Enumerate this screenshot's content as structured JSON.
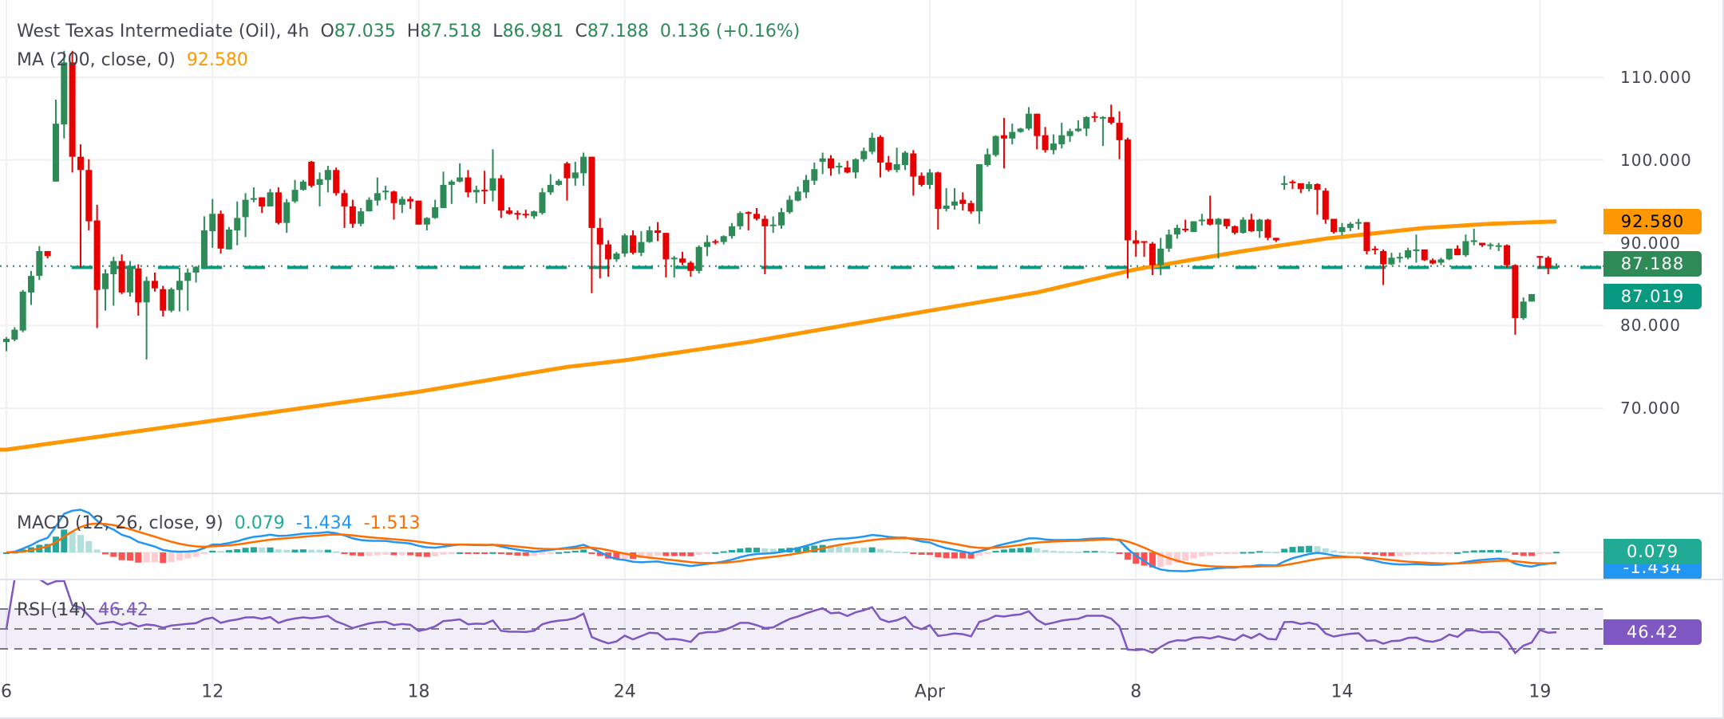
{
  "header": {
    "title": "West Texas Intermediate (Oil), 4h",
    "o_label": "O",
    "o": "87.035",
    "h_label": "H",
    "h": "87.518",
    "l_label": "L",
    "l": "86.981",
    "c_label": "C",
    "c": "87.188",
    "change": "0.136 (+0.16%)"
  },
  "ma": {
    "label": "MA (200, close, 0)",
    "value": "92.580"
  },
  "macd": {
    "label": "MACD (12, 26, close, 9)",
    "hist": "0.079",
    "macd": "-1.434",
    "signal": "-1.513"
  },
  "rsi": {
    "label": "RSI (14)",
    "value": "46.42",
    "levels": [
      70,
      50,
      30
    ]
  },
  "price_axis": {
    "ticks": [
      {
        "label": "110.000",
        "value": 110
      },
      {
        "label": "100.000",
        "value": 100
      },
      {
        "label": "90.000",
        "value": 90
      },
      {
        "label": "80.000",
        "value": 80
      },
      {
        "label": "70.000",
        "value": 70
      }
    ],
    "badges": {
      "ma": {
        "label": "92.580",
        "value": 92.58
      },
      "last": {
        "label": "87.188",
        "value": 87.188
      },
      "line": {
        "label": "87.019",
        "value": 87.019
      }
    }
  },
  "time_axis": {
    "ticks": [
      {
        "label": "6",
        "bar": 0
      },
      {
        "label": "12",
        "bar": 25
      },
      {
        "label": "18",
        "bar": 50
      },
      {
        "label": "24",
        "bar": 75
      },
      {
        "label": "Apr",
        "bar": 112
      },
      {
        "label": "8",
        "bar": 137
      },
      {
        "label": "14",
        "bar": 162
      },
      {
        "label": "19",
        "bar": 186
      }
    ]
  },
  "colors": {
    "up": "#2e8b57",
    "down": "#e60000",
    "ma": "#ff9800",
    "last": "#2e8b57",
    "line": "#089981",
    "macd": "#2196f3",
    "signal": "#ff6d00",
    "hist_up_strong": "#26a69a",
    "hist_up_weak": "#b2dfdb",
    "hist_down_strong": "#ff5252",
    "hist_down_weak": "#ffcdd2",
    "rsi": "#7e57c2",
    "macd_badge": "#22ab94"
  },
  "chart_data": {
    "type": "candlestick",
    "ylim": [
      62,
      116
    ],
    "candles": [
      [
        78.0,
        78.6,
        76.9,
        78.4
      ],
      [
        78.3,
        79.8,
        78.1,
        79.5
      ],
      [
        79.4,
        84.3,
        79.2,
        84.1
      ],
      [
        84,
        86.6,
        82.5,
        86
      ],
      [
        86,
        89.6,
        85.5,
        89
      ],
      [
        89,
        89,
        88.1,
        88.4
      ],
      [
        97.4,
        107.3,
        97.4,
        104.4
      ],
      [
        104.3,
        113.2,
        102.6,
        111.8
      ],
      [
        111.8,
        113.2,
        98.5,
        100.4
      ],
      [
        100.4,
        101.9,
        87,
        98.8
      ],
      [
        98.8,
        100.1,
        91.5,
        92.6
      ],
      [
        92.7,
        94.6,
        79.7,
        84.3
      ],
      [
        84.4,
        86.8,
        81.8,
        86.3
      ],
      [
        86.2,
        88.3,
        82.4,
        87.8
      ],
      [
        87.8,
        88.6,
        83.8,
        84.0
      ],
      [
        84,
        87.8,
        83.5,
        87.1
      ],
      [
        86.9,
        87.4,
        81.2,
        82.8
      ],
      [
        82.8,
        85.9,
        75.9,
        85.4
      ],
      [
        85.4,
        86.4,
        84.1,
        84.5
      ],
      [
        84.4,
        84.8,
        81.1,
        81.8
      ],
      [
        81.8,
        84.6,
        81.6,
        84.4
      ],
      [
        84.3,
        87,
        81.7,
        85.4
      ],
      [
        85.4,
        86.9,
        81.8,
        86.4
      ],
      [
        86.4,
        87.2,
        85.2,
        87.1
      ],
      [
        87,
        93.2,
        86.8,
        91.5
      ],
      [
        91.4,
        95.3,
        89.4,
        93.5
      ],
      [
        93.5,
        93.9,
        88.7,
        89.3
      ],
      [
        89.2,
        91.9,
        89.2,
        91.6
      ],
      [
        91.5,
        95,
        89.7,
        93
      ],
      [
        93.1,
        96,
        90.7,
        95.2
      ],
      [
        95.2,
        96.7,
        94.9,
        95.4
      ],
      [
        95.5,
        95.5,
        93.6,
        94.4
      ],
      [
        94.4,
        96.5,
        94.4,
        96.1
      ],
      [
        96.1,
        96.7,
        92.2,
        92.4
      ],
      [
        92.4,
        95.3,
        91.2,
        94.9
      ],
      [
        95,
        97.6,
        94.8,
        96.4
      ],
      [
        96.4,
        97.6,
        96.3,
        97.4
      ],
      [
        99.8,
        99.9,
        96.7,
        96.9
      ],
      [
        97,
        98.5,
        94.4,
        97.7
      ],
      [
        97.6,
        99.3,
        96.1,
        98.8
      ],
      [
        98.8,
        99.1,
        95.7,
        96
      ],
      [
        96,
        96.4,
        91.8,
        94.4
      ],
      [
        94.4,
        95.2,
        91.8,
        92.3
      ],
      [
        92.3,
        94.2,
        92,
        93.8
      ],
      [
        93.8,
        95.5,
        93.8,
        95.2
      ],
      [
        95.1,
        97.9,
        94.5,
        96
      ],
      [
        96.2,
        96.9,
        95.2,
        96.3
      ],
      [
        96.2,
        96.3,
        92.8,
        94.8
      ],
      [
        94.6,
        95.6,
        93.6,
        95.3
      ],
      [
        95.3,
        95.6,
        94.1,
        95
      ],
      [
        95.1,
        95.1,
        92.2,
        92.2
      ],
      [
        92.2,
        93.1,
        91.5,
        93
      ],
      [
        93,
        95.2,
        92.9,
        94.3
      ],
      [
        94.2,
        98.6,
        94.2,
        97
      ],
      [
        97,
        97.6,
        94.7,
        97.4
      ],
      [
        97.4,
        99.6,
        97.3,
        97.9
      ],
      [
        97.9,
        98.8,
        95.5,
        96.1
      ],
      [
        96.1,
        96.9,
        94.8,
        96.4
      ],
      [
        96.4,
        98.7,
        94.7,
        96.3
      ],
      [
        96.3,
        101.3,
        95,
        97.8
      ],
      [
        97.8,
        98.2,
        93,
        93.9
      ],
      [
        93.9,
        94.3,
        93.4,
        93.5
      ],
      [
        93.6,
        93.9,
        92.8,
        93.5
      ],
      [
        93.5,
        94,
        93,
        93.4
      ],
      [
        93.2,
        93.9,
        92.9,
        93.8
      ],
      [
        93.6,
        96.6,
        93.4,
        96.1
      ],
      [
        96.1,
        98.3,
        95.8,
        97
      ],
      [
        97,
        97.7,
        96.9,
        97.5
      ],
      [
        99.6,
        99.8,
        95.1,
        97.8
      ],
      [
        97.8,
        99.8,
        96.9,
        98.5
      ],
      [
        98.4,
        100.9,
        96.9,
        100.4
      ],
      [
        100.4,
        100.4,
        83.9,
        91.8
      ],
      [
        91.8,
        93,
        85.7,
        89.8
      ],
      [
        89.8,
        90.3,
        85.9,
        88
      ],
      [
        88,
        88.9,
        87.7,
        88.7
      ],
      [
        88.7,
        91.1,
        88.3,
        90.9
      ],
      [
        90.9,
        91.5,
        88.6,
        88.8
      ],
      [
        88.8,
        91.4,
        88.4,
        90.1
      ],
      [
        90.1,
        92,
        90,
        91.5
      ],
      [
        91.5,
        92.5,
        90.2,
        91.2
      ],
      [
        91.2,
        91.2,
        85.8,
        88
      ],
      [
        88.1,
        88.4,
        85.8,
        88.2
      ],
      [
        88.1,
        88.9,
        87.3,
        87.6
      ],
      [
        87.6,
        87.8,
        85.9,
        86.6
      ],
      [
        86.6,
        89.7,
        86.3,
        89.5
      ],
      [
        89.5,
        90.9,
        88.4,
        90.1
      ],
      [
        90.2,
        90.4,
        89.8,
        90.1
      ],
      [
        90.1,
        90.9,
        89.8,
        90.8
      ],
      [
        90.8,
        92.4,
        90.5,
        92
      ],
      [
        92,
        93.8,
        91.6,
        93.6
      ],
      [
        93.7,
        93.8,
        91.5,
        93.6
      ],
      [
        93.5,
        94.2,
        92.7,
        92.9
      ],
      [
        92.9,
        93.3,
        86.2,
        92.0
      ],
      [
        92.1,
        93.2,
        91.2,
        92.2
      ],
      [
        92.1,
        94.2,
        91.7,
        93.7
      ],
      [
        93.7,
        95.7,
        93.5,
        95.2
      ],
      [
        95.1,
        96.8,
        95,
        96.2
      ],
      [
        96.1,
        98.2,
        95.4,
        97.6
      ],
      [
        97.5,
        99.7,
        97,
        98.9
      ],
      [
        99.8,
        100.9,
        98.3,
        100.2
      ],
      [
        100.2,
        100.6,
        98.1,
        99
      ],
      [
        99.2,
        99.7,
        98.3,
        99.3
      ],
      [
        99.1,
        99.9,
        98.4,
        98.5
      ],
      [
        98.5,
        100.2,
        97.8,
        100.1
      ],
      [
        100.1,
        101.5,
        99.8,
        101.1
      ],
      [
        101,
        103.3,
        100.7,
        102.7
      ],
      [
        102.8,
        103,
        97.9,
        99.7
      ],
      [
        99.7,
        100.5,
        98.6,
        98.8
      ],
      [
        98.8,
        101.5,
        98.5,
        99.5
      ],
      [
        99.4,
        101.1,
        98.8,
        100.9
      ],
      [
        100.8,
        101.2,
        95.7,
        98
      ],
      [
        98.1,
        98.5,
        96.8,
        97
      ],
      [
        97,
        98.9,
        96.5,
        98.5
      ],
      [
        98.5,
        98.6,
        91.6,
        94.1
      ],
      [
        94.1,
        96.6,
        93.8,
        94.5
      ],
      [
        94.5,
        96.6,
        94,
        95
      ],
      [
        95.2,
        96.1,
        93.9,
        94.7
      ],
      [
        94.8,
        95.1,
        93.5,
        93.8
      ],
      [
        93.8,
        99.5,
        92.3,
        99.5
      ],
      [
        99.4,
        101.4,
        99.2,
        100.7
      ],
      [
        100.6,
        103,
        100.4,
        102.9
      ],
      [
        103,
        105.1,
        99,
        102.6
      ],
      [
        102.6,
        104.4,
        101.9,
        103.4
      ],
      [
        103.4,
        103.9,
        103.3,
        103.8
      ],
      [
        103.8,
        106.4,
        103.6,
        105.6
      ],
      [
        105.6,
        105.6,
        101.3,
        102.9
      ],
      [
        103,
        104,
        100.9,
        101.2
      ],
      [
        101.2,
        103.1,
        100.7,
        102
      ],
      [
        101.9,
        104.5,
        101.4,
        103
      ],
      [
        102.9,
        103.8,
        102.2,
        103.5
      ],
      [
        103.5,
        104.8,
        103.4,
        103.8
      ],
      [
        103.8,
        105.3,
        102.9,
        105.2
      ],
      [
        105.3,
        105.8,
        104.6,
        105.2
      ],
      [
        105.2,
        105.3,
        101.7,
        105.2
      ],
      [
        105.2,
        106.7,
        104.3,
        104.5
      ],
      [
        104.5,
        105.9,
        100.1,
        102.4
      ],
      [
        102.5,
        102.7,
        85.7,
        90.3
      ],
      [
        90.3,
        91.5,
        88.3,
        89.9
      ],
      [
        90.2,
        90.2,
        88.3,
        90.1
      ],
      [
        89.9,
        90.1,
        86.1,
        87.3
      ],
      [
        87.3,
        90.6,
        86.1,
        89.3
      ],
      [
        89.3,
        91.6,
        88.9,
        91
      ],
      [
        91,
        92.2,
        90.5,
        91.8
      ],
      [
        91.7,
        92.8,
        91.3,
        91.6
      ],
      [
        91.3,
        92.6,
        91.3,
        92.6
      ],
      [
        92.7,
        93.5,
        92.1,
        92.8
      ],
      [
        92.9,
        95.7,
        92.1,
        92.2
      ],
      [
        92.2,
        93,
        88.1,
        92.9
      ],
      [
        92.9,
        92.9,
        91.7,
        92
      ],
      [
        92,
        92.1,
        91,
        91.2
      ],
      [
        91.2,
        93.1,
        91.1,
        92.8
      ],
      [
        92.8,
        93.5,
        91.3,
        91.4
      ],
      [
        91.4,
        92.9,
        90.6,
        92.8
      ],
      [
        92.8,
        92.9,
        90.3,
        90.6
      ],
      [
        90.6,
        90.6,
        90.1,
        90.3
      ],
      [
        97.1,
        98.1,
        96.4,
        97.2
      ],
      [
        97.4,
        97.6,
        96.5,
        97.3
      ],
      [
        97.2,
        97.2,
        96,
        96.5
      ],
      [
        96.5,
        97.4,
        96.2,
        97.1
      ],
      [
        97.1,
        97.2,
        93.4,
        96.4
      ],
      [
        96.3,
        96.6,
        92.3,
        92.8
      ],
      [
        92.9,
        92.9,
        91.1,
        91.3
      ],
      [
        91.3,
        92.4,
        90.9,
        91.9
      ],
      [
        91.8,
        92.5,
        91.4,
        92.3
      ],
      [
        92.5,
        92.9,
        91.6,
        92.5
      ],
      [
        92.5,
        92.5,
        88.6,
        89
      ],
      [
        89.3,
        89.6,
        88.6,
        89.2
      ],
      [
        89,
        89.2,
        84.9,
        87.4
      ],
      [
        87.4,
        88.8,
        87.3,
        88.2
      ],
      [
        88.3,
        88.8,
        87.6,
        88.3
      ],
      [
        88.2,
        89.4,
        88,
        89.1
      ],
      [
        89.1,
        91,
        87.6,
        89.2
      ],
      [
        89.2,
        89.2,
        87.8,
        87.9
      ],
      [
        87.9,
        88.1,
        87.4,
        87.5
      ],
      [
        87.6,
        88.2,
        87.3,
        88
      ],
      [
        88,
        89.3,
        87.9,
        89.3
      ],
      [
        89.3,
        89.7,
        88.5,
        88.5
      ],
      [
        88.5,
        91,
        88.3,
        90.2
      ],
      [
        90.3,
        91.7,
        89.7,
        90.3
      ],
      [
        90,
        90,
        89.5,
        89.7
      ],
      [
        89.8,
        90,
        89.2,
        89.8
      ],
      [
        89.7,
        90,
        89,
        89.7
      ],
      [
        89.7,
        89.8,
        87,
        87.3
      ],
      [
        87.3,
        87.4,
        78.9,
        80.9
      ],
      [
        80.9,
        83.4,
        80.7,
        82.9
      ],
      [
        82.9,
        83.8,
        82.9,
        83.8
      ],
      [
        88.4,
        88.4,
        86.9,
        88.2
      ],
      [
        88.2,
        88.4,
        86.2,
        87
      ],
      [
        87.035,
        87.518,
        86.981,
        87.188
      ]
    ],
    "ma200": [
      [
        0,
        65.0
      ],
      [
        25,
        68.5
      ],
      [
        50,
        72.0
      ],
      [
        68,
        75.0
      ],
      [
        75,
        75.8
      ],
      [
        90,
        78.0
      ],
      [
        112,
        81.8
      ],
      [
        125,
        84.0
      ],
      [
        137,
        86.8
      ],
      [
        150,
        89.0
      ],
      [
        160,
        90.5
      ],
      [
        172,
        91.8
      ],
      [
        180,
        92.3
      ],
      [
        188,
        92.58
      ]
    ],
    "last_price": 87.188,
    "line_price": 87.019
  }
}
